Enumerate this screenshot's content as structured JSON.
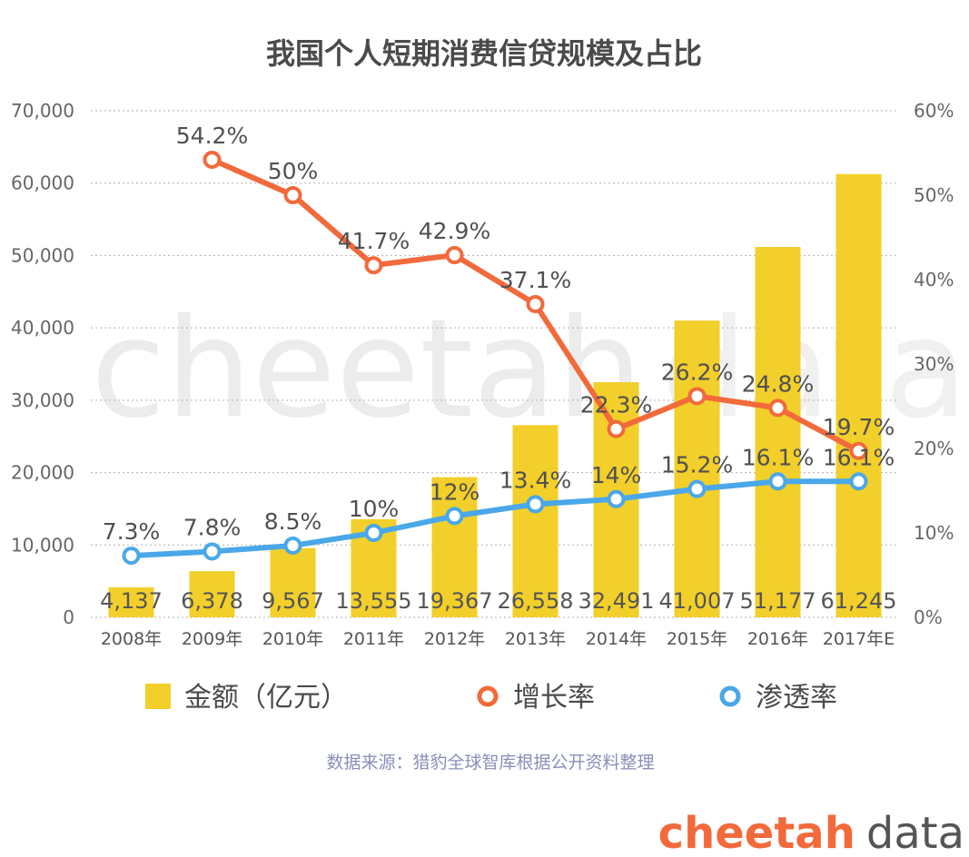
{
  "chart_data": {
    "type": "bar",
    "title": "我国个人短期消费信贷规模及占比",
    "categories": [
      "2008年",
      "2009年",
      "2010年",
      "2011年",
      "2012年",
      "2013年",
      "2014年",
      "2015年",
      "2016年",
      "2017年E"
    ],
    "bars": {
      "name": "金额（亿元）",
      "values": [
        4137,
        6378,
        9567,
        13555,
        19367,
        26558,
        32491,
        41007,
        51177,
        61245
      ],
      "labels": [
        "4,137",
        "6,378",
        "9,567",
        "13,555",
        "19,367",
        "26,558",
        "32,491",
        "41,007",
        "51,177",
        "61,245"
      ],
      "color": "#f2cf2a"
    },
    "series": [
      {
        "name": "增长率",
        "values": [
          null,
          54.2,
          50,
          41.7,
          42.9,
          37.1,
          22.3,
          26.2,
          24.8,
          19.7
        ],
        "labels": [
          "",
          "54.2%",
          "50%",
          "41.7%",
          "42.9%",
          "37.1%",
          "22.3%",
          "26.2%",
          "24.8%",
          "19.7%"
        ],
        "color": "#f26a3b"
      },
      {
        "name": "渗透率",
        "values": [
          7.3,
          7.8,
          8.5,
          10,
          12,
          13.4,
          14,
          15.2,
          16.1,
          16.1
        ],
        "labels": [
          "7.3%",
          "7.8%",
          "8.5%",
          "10%",
          "12%",
          "13.4%",
          "14%",
          "15.2%",
          "16.1%",
          "16.1%"
        ],
        "color": "#4aa8e8"
      }
    ],
    "y_left": {
      "ylim": [
        0,
        70000
      ],
      "ticks": [
        "0",
        "10,000",
        "20,000",
        "30,000",
        "40,000",
        "50,000",
        "60,000",
        "70,000"
      ]
    },
    "y_right": {
      "ylim": [
        0,
        60
      ],
      "ticks": [
        "0%",
        "10%",
        "20%",
        "30%",
        "40%",
        "50%",
        "60%"
      ]
    },
    "grid": true,
    "legend_placement": "bottom"
  },
  "source_text": "数据来源：猎豹全球智库根据公开资料整理",
  "watermark": {
    "part1": "cheetah",
    "part2": "data"
  },
  "brand": {
    "part1": "cheetah",
    "part2": "data",
    "color1": "#f26a3b",
    "color2": "#555555"
  }
}
